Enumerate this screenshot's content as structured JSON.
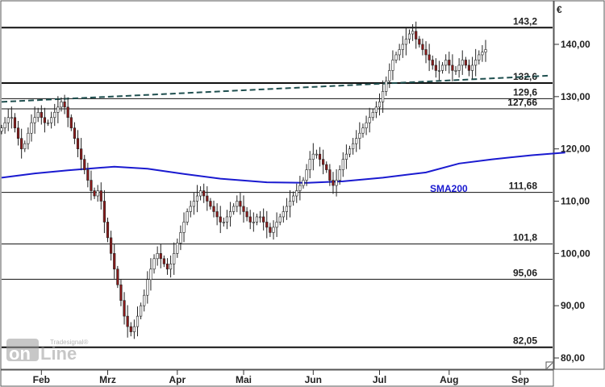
{
  "chart_data": {
    "type": "candlestick",
    "currency_label": "€",
    "ylim": [
      80,
      145
    ],
    "y_ticks": [
      "80,00",
      "90,00",
      "100,00",
      "110,00",
      "120,00",
      "130,00",
      "140,00"
    ],
    "y_tick_values": [
      80,
      90,
      100,
      110,
      120,
      130,
      140
    ],
    "x_months": [
      "Feb",
      "Mrz",
      "Apr",
      "Mai",
      "Jun",
      "Jul",
      "Aug",
      "Sep"
    ],
    "levels": [
      {
        "label": "143,2",
        "value": 143.2
      },
      {
        "label": "132,6",
        "value": 132.6
      },
      {
        "label": "129,6",
        "value": 129.6
      },
      {
        "label": "127,66",
        "value": 127.66
      },
      {
        "label": "111,68",
        "value": 111.68
      },
      {
        "label": "101,8",
        "value": 101.8
      },
      {
        "label": "95,06",
        "value": 95.06
      },
      {
        "label": "82,05",
        "value": 82.05
      }
    ],
    "trendline": {
      "start": {
        "index": 0,
        "value": 129.0
      },
      "end": {
        "index": 170,
        "value": 134.0
      }
    },
    "sma200": {
      "label": "SMA200",
      "points": [
        {
          "i": 0,
          "v": 114.5
        },
        {
          "i": 10,
          "v": 115.3
        },
        {
          "i": 20,
          "v": 115.9
        },
        {
          "i": 34,
          "v": 116.6
        },
        {
          "i": 44,
          "v": 116.2
        },
        {
          "i": 55,
          "v": 115.2
        },
        {
          "i": 66,
          "v": 114.3
        },
        {
          "i": 80,
          "v": 113.6
        },
        {
          "i": 92,
          "v": 113.5
        },
        {
          "i": 103,
          "v": 113.8
        },
        {
          "i": 115,
          "v": 114.5
        },
        {
          "i": 128,
          "v": 115.5
        },
        {
          "i": 138,
          "v": 117.2
        },
        {
          "i": 148,
          "v": 118.0
        },
        {
          "i": 160,
          "v": 118.8
        },
        {
          "i": 170,
          "v": 119.3
        }
      ]
    },
    "closes": [
      124,
      125,
      126,
      126,
      124,
      122,
      120,
      121,
      123,
      125,
      126,
      127,
      126,
      125,
      125,
      126,
      127,
      128,
      129,
      128,
      126,
      124,
      122,
      120,
      118,
      116,
      114,
      112,
      111,
      112,
      110,
      106,
      103,
      100,
      97,
      94,
      91,
      88,
      86,
      85,
      86,
      88,
      90,
      92,
      95,
      97,
      99,
      100,
      99,
      98,
      97,
      98,
      100,
      102,
      104,
      106,
      108,
      109,
      110,
      111,
      112,
      111,
      110,
      109,
      108,
      107,
      106,
      106,
      107,
      108,
      109,
      110,
      109,
      108,
      107,
      106,
      106,
      107,
      107,
      106,
      105,
      104,
      105,
      106,
      107,
      108,
      109,
      110,
      111,
      112,
      113,
      114,
      116,
      118,
      119,
      119,
      118,
      117,
      116,
      114,
      113,
      114,
      116,
      118,
      119,
      120,
      121,
      122,
      123,
      124,
      125,
      126,
      127,
      128,
      129,
      131,
      133,
      135,
      137,
      138,
      139,
      140,
      141,
      142,
      142.5,
      141,
      140,
      139,
      138,
      137,
      136,
      135,
      135,
      136,
      137,
      136,
      135,
      135,
      136,
      137,
      136,
      135,
      136,
      137,
      138,
      138.5,
      139
    ],
    "x_months_at_index": [
      12,
      32,
      53,
      73,
      94,
      114,
      135,
      157
    ]
  }
}
